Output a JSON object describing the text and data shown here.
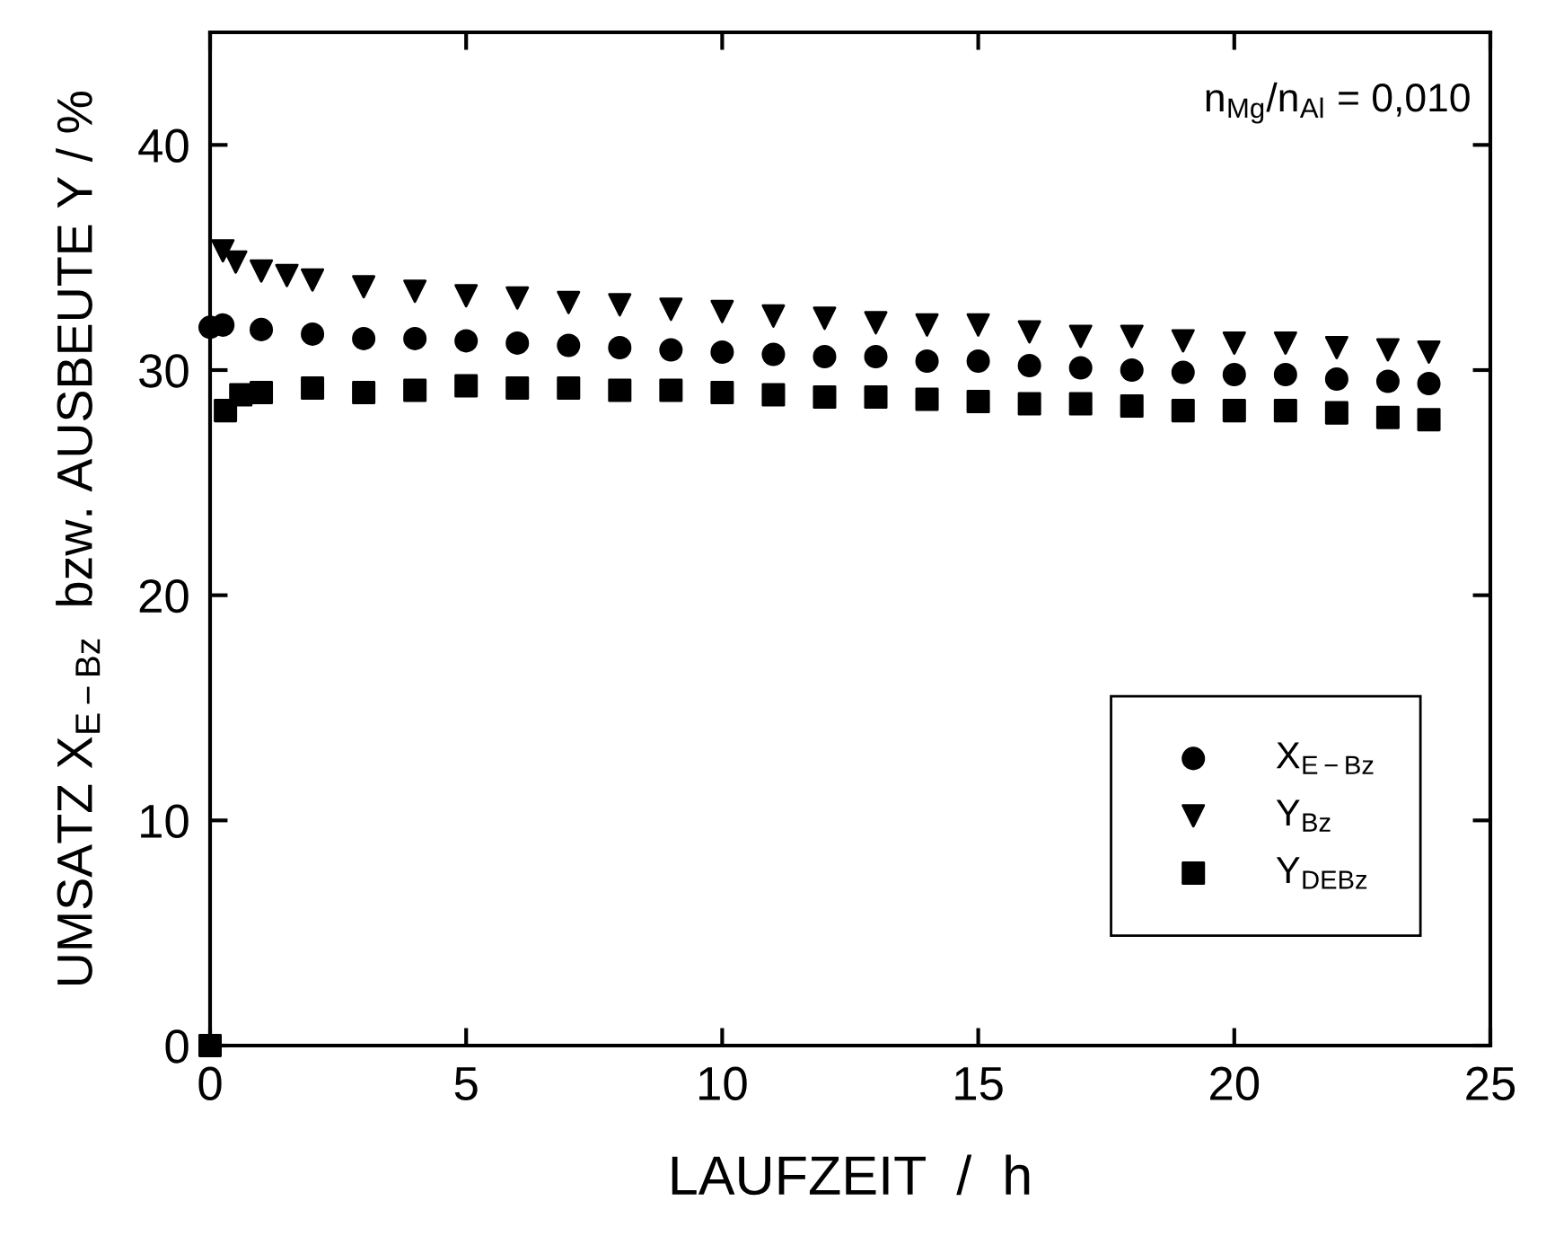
{
  "chart_data": {
    "type": "scatter",
    "xlabel": "LAUFZEIT  /  h",
    "ylabel": "UMSATZ X$_{E−Bz}$  bzw. AUSBEUTE Y / %",
    "annotations": [
      "n$_{Mg}$/n$_{Al}$ = 0,010"
    ],
    "xlim": [
      0,
      25
    ],
    "xticks": [
      0,
      5,
      10,
      15,
      20,
      25
    ],
    "ylim": [
      0,
      45
    ],
    "yticks": [
      0,
      10,
      20,
      30,
      40
    ],
    "grid": false,
    "legend": "bottom right",
    "series": [
      {
        "name": "X$_{E−Bz}$",
        "color": "#000000",
        "marker": "circle",
        "x": [
          0,
          0.25,
          1,
          2,
          3,
          4,
          5,
          6,
          7,
          8,
          9,
          10,
          11,
          12,
          13,
          14,
          15,
          16,
          17,
          18,
          19,
          20,
          21,
          22,
          23,
          23.8
        ],
        "values": [
          31.9,
          32.0,
          31.8,
          31.6,
          31.4,
          31.4,
          31.3,
          31.2,
          31.1,
          31.0,
          30.9,
          30.8,
          30.7,
          30.6,
          30.6,
          30.4,
          30.4,
          30.2,
          30.1,
          30.0,
          29.9,
          29.8,
          29.8,
          29.6,
          29.5,
          29.4
        ]
      },
      {
        "name": "Y$_{Bz}$",
        "color": "#000000",
        "marker": "triangle",
        "x": [
          0.25,
          0.5,
          1,
          1.5,
          2,
          3,
          4,
          5,
          6,
          7,
          8,
          9,
          10,
          11,
          12,
          13,
          14,
          15,
          16,
          17,
          18,
          19,
          20,
          21,
          22,
          23,
          23.8
        ],
        "values": [
          35.3,
          34.8,
          34.4,
          34.2,
          34.0,
          33.7,
          33.5,
          33.3,
          33.2,
          33.0,
          32.9,
          32.7,
          32.6,
          32.4,
          32.3,
          32.1,
          32.0,
          32.0,
          31.7,
          31.5,
          31.5,
          31.3,
          31.2,
          31.2,
          31.0,
          30.9,
          30.8
        ]
      },
      {
        "name": "Y$_{DEBz}$",
        "color": "#000000",
        "marker": "square",
        "x": [
          0,
          0.3,
          0.6,
          1,
          2,
          3,
          4,
          5,
          6,
          7,
          8,
          9,
          10,
          11,
          12,
          13,
          14,
          15,
          16,
          17,
          18,
          19,
          20,
          21,
          22,
          23,
          23.8
        ],
        "values": [
          0,
          28.2,
          28.9,
          29.0,
          29.2,
          29.0,
          29.1,
          29.3,
          29.2,
          29.2,
          29.1,
          29.1,
          29.0,
          28.9,
          28.8,
          28.8,
          28.7,
          28.6,
          28.5,
          28.5,
          28.4,
          28.2,
          28.2,
          28.2,
          28.1,
          27.9,
          27.8
        ]
      }
    ]
  }
}
